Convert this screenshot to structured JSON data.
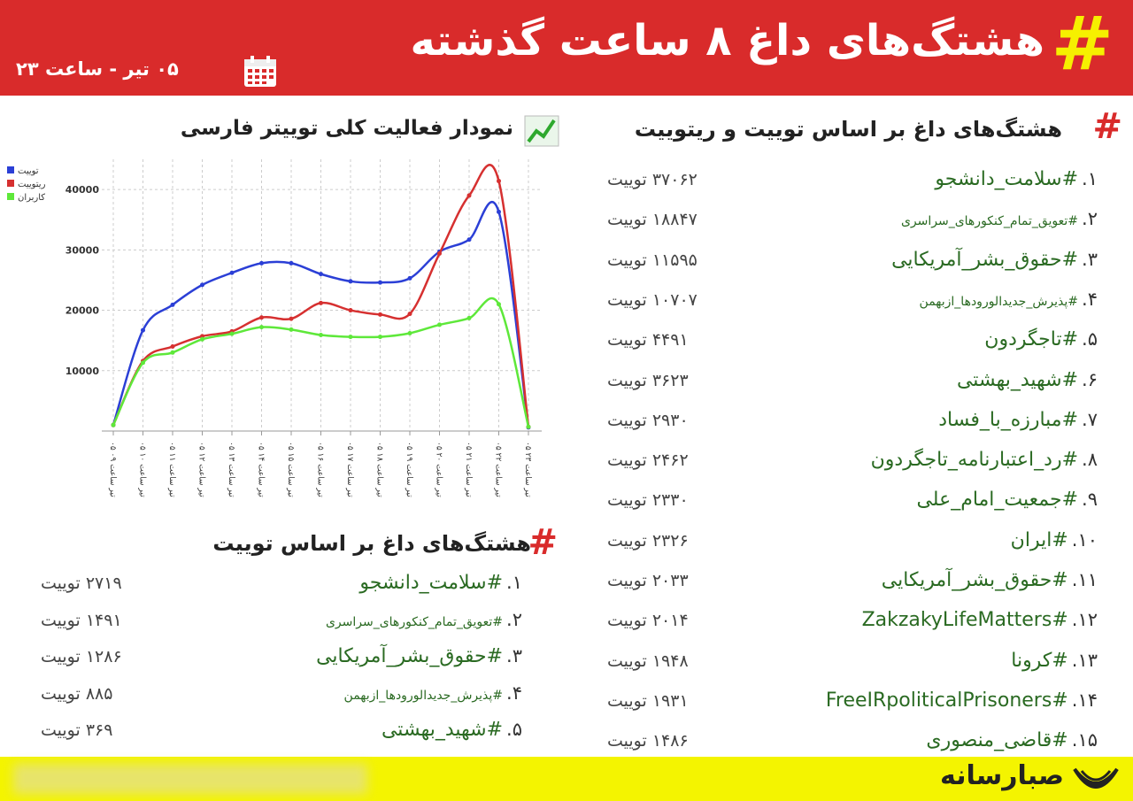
{
  "header": {
    "hash": "#",
    "title": "هشتگ‌های داغ ۸ ساعت گذشته",
    "date": "۰۵ تیر - ساعت ۲۳"
  },
  "chart_data": {
    "type": "line",
    "title": "نمودار فعالیت کلی توییتر فارسی",
    "categories": [
      "۰۵ تیر ساعت ۰۹",
      "۰۵ تیر ساعت ۱۰",
      "۰۵ تیر ساعت ۱۱",
      "۰۵ تیر ساعت ۱۲",
      "۰۵ تیر ساعت ۱۳",
      "۰۵ تیر ساعت ۱۴",
      "۰۵ تیر ساعت ۱۵",
      "۰۵ تیر ساعت ۱۶",
      "۰۵ تیر ساعت ۱۷",
      "۰۵ تیر ساعت ۱۸",
      "۰۵ تیر ساعت ۱۹",
      "۰۵ تیر ساعت ۲۰",
      "۰۵ تیر ساعت ۲۱",
      "۰۵ تیر ساعت ۲۲",
      "۰۵ تیر ساعت ۲۳"
    ],
    "series": [
      {
        "name": "توییت",
        "color": "#2b3fd6",
        "values": [
          1000,
          16700,
          20900,
          24200,
          26200,
          27800,
          27800,
          26000,
          24800,
          24600,
          25300,
          29700,
          31700,
          36300,
          600
        ]
      },
      {
        "name": "ریتوییت",
        "color": "#d63030",
        "values": [
          1000,
          11600,
          14000,
          15700,
          16500,
          18800,
          18600,
          21200,
          20000,
          19300,
          19400,
          29400,
          39000,
          41400,
          700
        ]
      },
      {
        "name": "کاربران",
        "color": "#5ee83a",
        "values": [
          1000,
          11300,
          13000,
          15200,
          16100,
          17200,
          16800,
          15900,
          15600,
          15600,
          16200,
          17600,
          18700,
          21000,
          700
        ]
      }
    ],
    "ylim": [
      0,
      45000
    ],
    "yticks": [
      10000,
      20000,
      30000,
      40000
    ],
    "grid": true,
    "legend": "top-left"
  },
  "top_list": {
    "title": "هشتگ‌های داغ بر اساس توییت و ریتوییت",
    "items": [
      {
        "rank": "۱.",
        "tag": "#سلامت_دانشجو",
        "count": "۳۷۰۶۲ توییت"
      },
      {
        "rank": "۲.",
        "tag": "#تعویق_تمام_کنکورهای_سراسری",
        "count": "۱۸۸۴۷ توییت"
      },
      {
        "rank": "۳.",
        "tag": "#حقوق_بشر_آمریکایی",
        "count": "۱۱۵۹۵ توییت"
      },
      {
        "rank": "۴.",
        "tag": "#پذیرش_جدیدالورودها_ازبهمن",
        "count": "۱۰۷۰۷ توییت"
      },
      {
        "rank": "۵.",
        "tag": "#تاجگردون",
        "count": "۴۴۹۱ توییت"
      },
      {
        "rank": "۶.",
        "tag": "#شهید_بهشتی",
        "count": "۳۶۲۳ توییت"
      },
      {
        "rank": "۷.",
        "tag": "#مبارزه_با_فساد",
        "count": "۲۹۳۰ توییت"
      },
      {
        "rank": "۸.",
        "tag": "#رد_اعتبارنامه_تاجگردون",
        "count": "۲۴۶۲ توییت"
      },
      {
        "rank": "۹.",
        "tag": "#جمعیت_امام_علی",
        "count": "۲۳۳۰ توییت"
      },
      {
        "rank": "۱۰.",
        "tag": "#ایران",
        "count": "۲۳۲۶ توییت"
      },
      {
        "rank": "۱۱.",
        "tag": "#حقوق_بشر_آمریکایی",
        "count": "۲۰۳۳ توییت"
      },
      {
        "rank": "۱۲.",
        "tag": "#ZakzakyLifeMatters",
        "count": "۲۰۱۴ توییت"
      },
      {
        "rank": "۱۳.",
        "tag": "#کرونا",
        "count": "۱۹۴۸ توییت"
      },
      {
        "rank": "۱۴.",
        "tag": "#FreeIRpoliticalPrisoners",
        "count": "۱۹۳۱ توییت"
      },
      {
        "rank": "۱۵.",
        "tag": "#قاضی_منصوری",
        "count": "۱۴۸۶ توییت"
      }
    ]
  },
  "tweet_list": {
    "title": "هشتگ‌های داغ بر اساس توییت",
    "items": [
      {
        "rank": "۱.",
        "tag": "#سلامت_دانشجو",
        "count": "۲۷۱۹ توییت"
      },
      {
        "rank": "۲.",
        "tag": "#تعویق_تمام_کنکورهای_سراسری",
        "count": "۱۴۹۱ توییت"
      },
      {
        "rank": "۳.",
        "tag": "#حقوق_بشر_آمریکایی",
        "count": "۱۲۸۶ توییت"
      },
      {
        "rank": "۴.",
        "tag": "#پذیرش_جدیدالورودها_ازبهمن",
        "count": "۸۸۵ توییت"
      },
      {
        "rank": "۵.",
        "tag": "#شهید_بهشتی",
        "count": "۳۶۹ توییت"
      }
    ]
  },
  "footer": {
    "brand": "صبارسانه"
  }
}
